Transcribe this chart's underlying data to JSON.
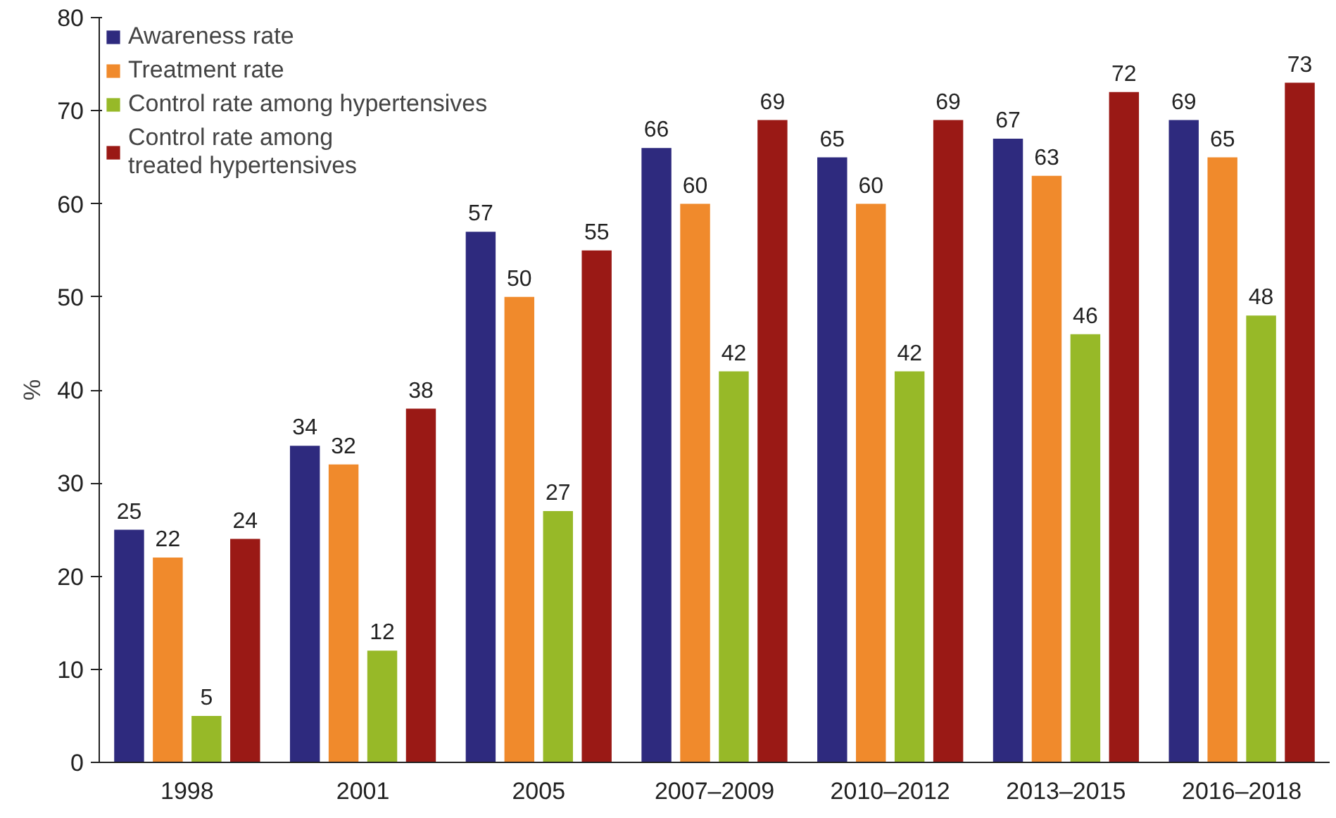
{
  "chart_data": {
    "type": "bar",
    "ylabel": "%",
    "categories": [
      "1998",
      "2001",
      "2005",
      "2007–2009",
      "2010–2012",
      "2013–2015",
      "2016–2018"
    ],
    "series": [
      {
        "name": "Awareness rate",
        "color": "#2e2a7e",
        "values": [
          25,
          34,
          57,
          66,
          65,
          67,
          69
        ]
      },
      {
        "name": "Treatment rate",
        "color": "#f08a2c",
        "values": [
          22,
          32,
          50,
          60,
          60,
          63,
          65
        ]
      },
      {
        "name": "Control rate among hypertensives",
        "color": "#97b928",
        "values": [
          5,
          12,
          27,
          42,
          42,
          46,
          48
        ]
      },
      {
        "name": "Control rate among\ntreated hypertensives",
        "color": "#9a1915",
        "values": [
          24,
          38,
          55,
          69,
          69,
          72,
          73
        ]
      }
    ],
    "ylim": [
      0,
      80
    ],
    "yticks": [
      0,
      10,
      20,
      30,
      40,
      50,
      60,
      70,
      80
    ],
    "data_labels": true,
    "grid": false,
    "legend": "top left"
  }
}
